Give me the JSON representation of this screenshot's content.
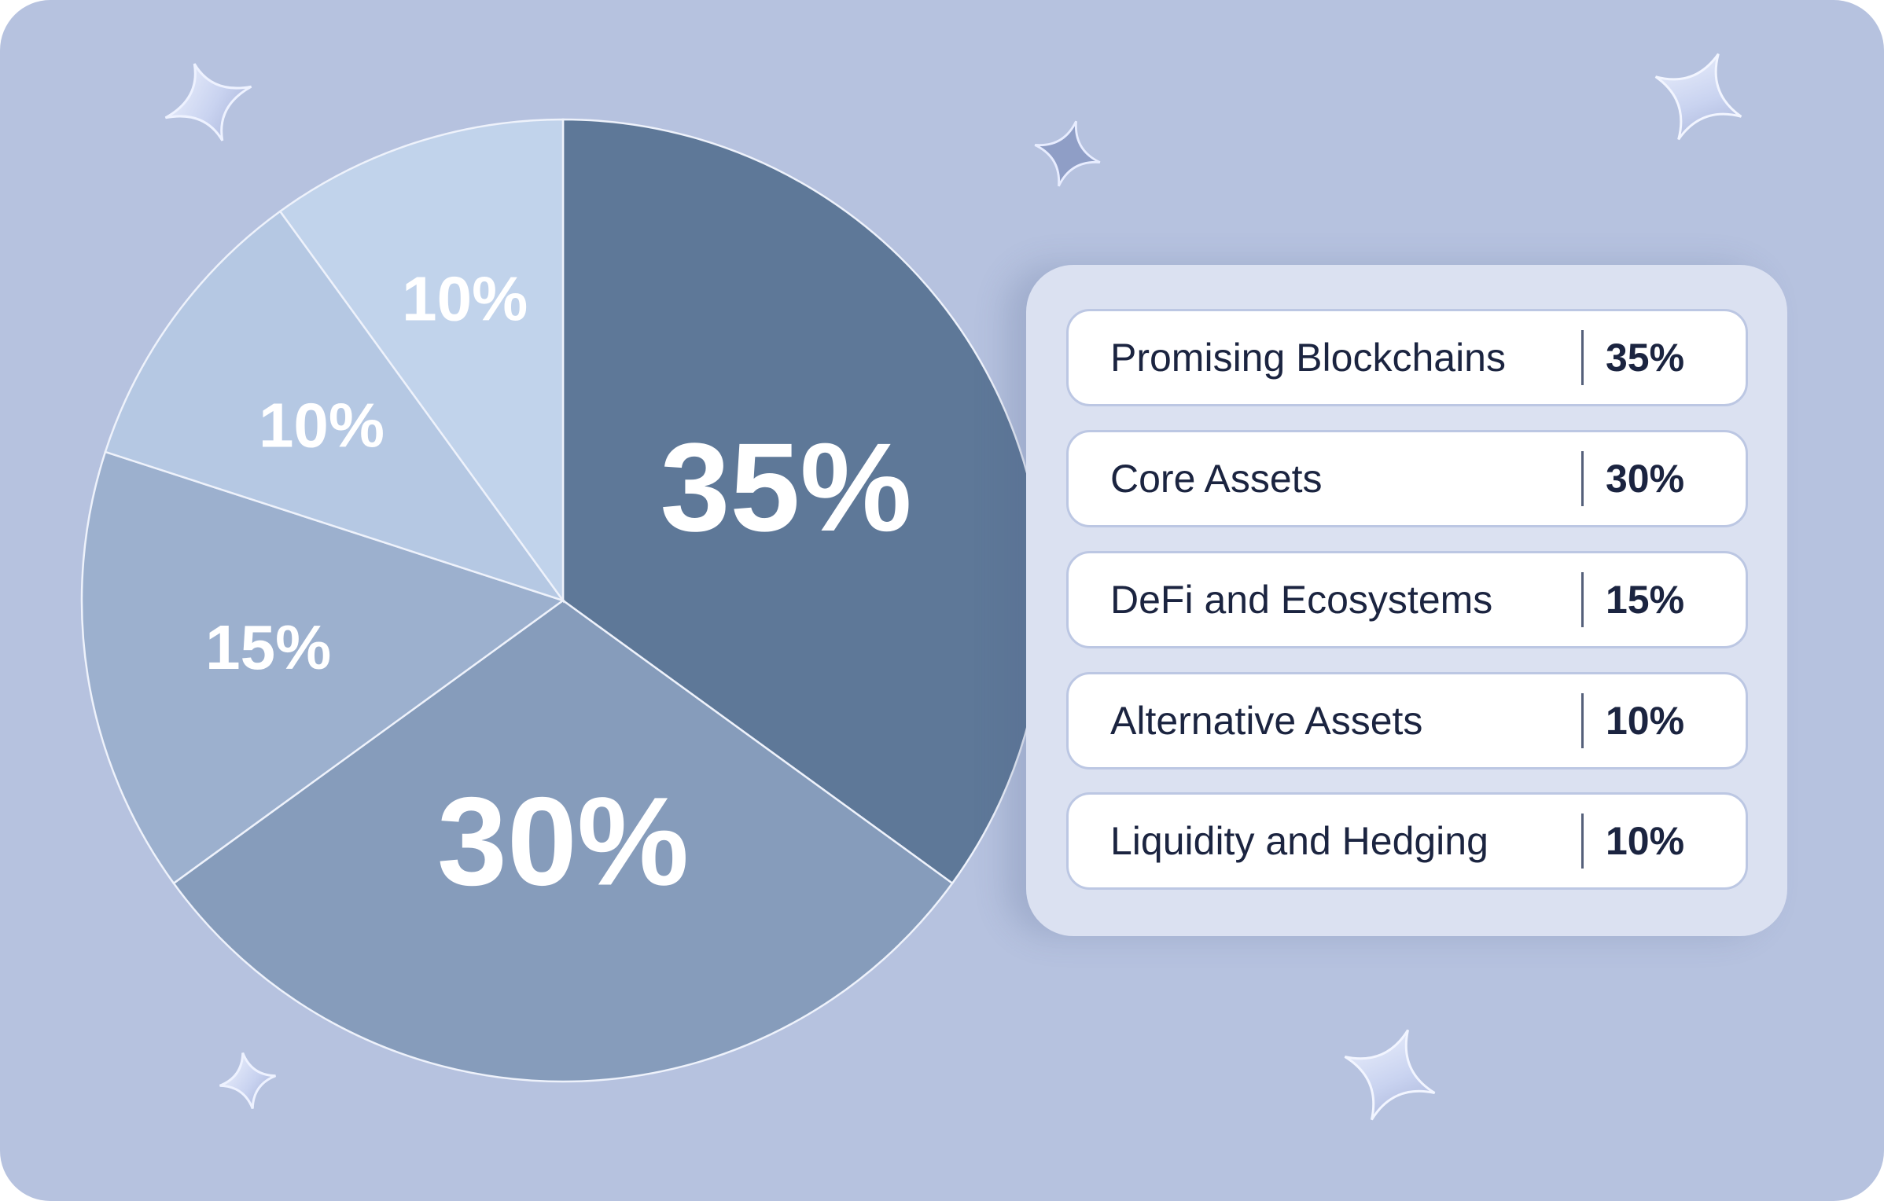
{
  "chart_data": {
    "type": "pie",
    "categories": [
      "Promising Blockchains",
      "Core Assets",
      "DeFi and Ecosystems",
      "Alternative Assets",
      "Liquidity and Hedging"
    ],
    "values": [
      35,
      30,
      15,
      10,
      10
    ],
    "value_labels": [
      "35%",
      "30%",
      "15%",
      "10%",
      "10%"
    ],
    "colors": [
      "#5e7898",
      "#869cbb",
      "#9cb0ce",
      "#b5c8e3",
      "#c1d3eb"
    ],
    "start_angle": "12 o'clock",
    "direction": "clockwise",
    "legend_position": "right",
    "title": ""
  },
  "legend": {
    "items": [
      {
        "label": "Promising Blockchains",
        "value": "35%"
      },
      {
        "label": "Core Assets",
        "value": "30%"
      },
      {
        "label": "DeFi and Ecosystems",
        "value": "15%"
      },
      {
        "label": "Alternative Assets",
        "value": "10%"
      },
      {
        "label": "Liquidity and Hedging",
        "value": "10%"
      }
    ]
  },
  "colors": {
    "background": "#b6c2df",
    "panel": "#dbe1f1",
    "row": "#ffffff",
    "text": "#1b2440"
  },
  "decorations": {
    "icons": [
      "star-sparkle-icon"
    ]
  }
}
